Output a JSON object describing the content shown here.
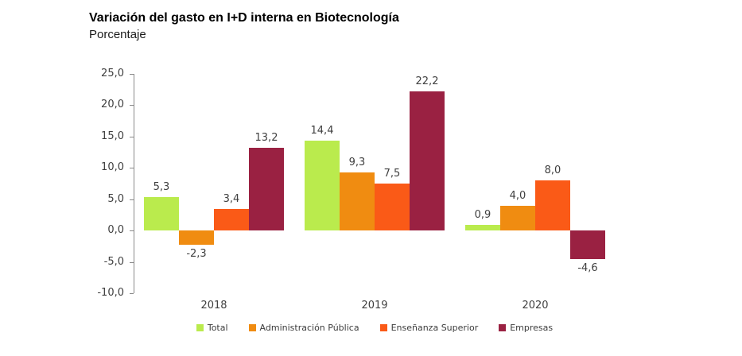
{
  "header": {
    "title": "Variación del gasto en I+D interna en Biotecnología",
    "subtitle": "Porcentaje"
  },
  "chart_data": {
    "type": "bar",
    "categories": [
      "2018",
      "2019",
      "2020"
    ],
    "series": [
      {
        "name": "Total",
        "color": "#BAEB4D",
        "values": [
          5.3,
          14.4,
          0.9
        ]
      },
      {
        "name": "Administración Pública",
        "color": "#F08C11",
        "values": [
          -2.3,
          9.3,
          4.0
        ]
      },
      {
        "name": "Enseñanza Superior",
        "color": "#FA5A17",
        "values": [
          3.4,
          7.5,
          8.0
        ]
      },
      {
        "name": "Empresas",
        "color": "#9A2142",
        "values": [
          13.2,
          22.2,
          -4.6
        ]
      }
    ],
    "y_ticks": [
      "25,0",
      "20,0",
      "15,0",
      "10,0",
      "5,0",
      "0,0",
      "-5,0",
      "-10,0"
    ],
    "ylim": [
      -10,
      25
    ],
    "y_tick_step": 5,
    "decimal_separator": ",",
    "grid": false,
    "legend_position": "bottom",
    "axis_color": "#898989"
  }
}
